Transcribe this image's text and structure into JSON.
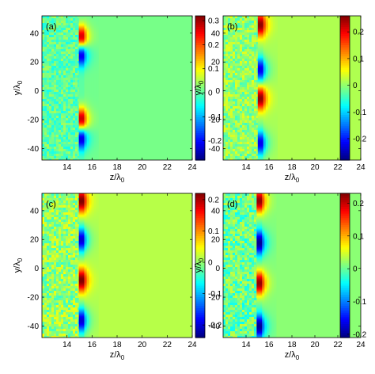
{
  "chart_data": [
    {
      "type": "heatmap",
      "panel_label": "(a)",
      "xlabel": "z/λ",
      "xlabel_sub": "0",
      "ylabel": "y/λ",
      "ylabel_sub": "0",
      "xlim": [
        12,
        24
      ],
      "ylim": [
        -48,
        52
      ],
      "xticks": [
        "14",
        "16",
        "18",
        "20",
        "22",
        "24"
      ],
      "yticks": [
        "40",
        "20",
        "0",
        "-20",
        "-40"
      ],
      "colorbar_ticks": [
        "0.3",
        "0.2",
        "0.1",
        "0",
        "-0.1",
        "-0.2"
      ],
      "clim": [
        -0.28,
        0.32
      ],
      "front_z": 15.2,
      "features": [
        {
          "y_center": 37,
          "sign": "positive",
          "peak": 0.3
        },
        {
          "y_center": 26,
          "sign": "negative",
          "peak": -0.25
        },
        {
          "y_center": -20,
          "sign": "positive",
          "peak": 0.3
        },
        {
          "y_center": -32,
          "sign": "negative",
          "peak": -0.25
        }
      ]
    },
    {
      "type": "heatmap",
      "panel_label": "(b)",
      "xlabel": "z/λ",
      "xlabel_sub": "0",
      "ylabel": "y/λ",
      "ylabel_sub": "0",
      "xlim": [
        12,
        24
      ],
      "ylim": [
        -48,
        52
      ],
      "xticks": [
        "14",
        "16",
        "18",
        "20",
        "22",
        "24"
      ],
      "yticks": [
        "40",
        "20",
        "0",
        "-20",
        "-40"
      ],
      "colorbar_ticks": [
        "0.2",
        "0.1",
        "0",
        "-0.1",
        "-0.2"
      ],
      "clim": [
        -0.28,
        0.26
      ],
      "front_z": 15.3,
      "features": [
        {
          "y_center": 46,
          "sign": "positive",
          "peak": 0.25
        },
        {
          "y_center": 15,
          "sign": "negative",
          "peak": -0.22
        },
        {
          "y_center": -5,
          "sign": "positive",
          "peak": 0.25
        },
        {
          "y_center": -36,
          "sign": "negative",
          "peak": -0.22
        }
      ]
    },
    {
      "type": "heatmap",
      "panel_label": "(c)",
      "xlabel": "z/λ",
      "xlabel_sub": "0",
      "ylabel": "y/λ",
      "ylabel_sub": "0",
      "xlim": [
        12,
        24
      ],
      "ylim": [
        -48,
        52
      ],
      "xticks": [
        "14",
        "16",
        "18",
        "20",
        "22",
        "24"
      ],
      "yticks": [
        "40",
        "20",
        "0",
        "-20",
        "-40"
      ],
      "colorbar_ticks": [
        "0.2",
        "0.1",
        "0",
        "-0.1",
        "-0.2"
      ],
      "clim": [
        -0.24,
        0.22
      ],
      "front_z": 15.2,
      "features": [
        {
          "y_center": 47,
          "sign": "positive",
          "peak": 0.22
        },
        {
          "y_center": 20,
          "sign": "negative",
          "peak": -0.2
        },
        {
          "y_center": -8,
          "sign": "positive",
          "peak": 0.22
        },
        {
          "y_center": -36,
          "sign": "negative",
          "peak": -0.2
        }
      ]
    },
    {
      "type": "heatmap",
      "panel_label": "(d)",
      "xlabel": "z/λ",
      "xlabel_sub": "0",
      "ylabel": "y/λ",
      "ylabel_sub": "0",
      "xlim": [
        12,
        24
      ],
      "ylim": [
        -48,
        52
      ],
      "xticks": [
        "14",
        "16",
        "18",
        "20",
        "22",
        "24"
      ],
      "yticks": [
        "40",
        "20",
        "0",
        "-20",
        "-40"
      ],
      "colorbar_ticks": [
        "0.2",
        "0.1",
        "0",
        "-0.1",
        "-0.2"
      ],
      "clim": [
        -0.21,
        0.23
      ],
      "front_z": 15.2,
      "features": [
        {
          "y_center": 47,
          "sign": "positive",
          "peak": 0.22
        },
        {
          "y_center": 18,
          "sign": "negative",
          "peak": -0.2
        },
        {
          "y_center": -10,
          "sign": "positive",
          "peak": 0.22
        },
        {
          "y_center": -40,
          "sign": "negative",
          "peak": -0.2
        }
      ]
    }
  ],
  "colormap": "jet"
}
